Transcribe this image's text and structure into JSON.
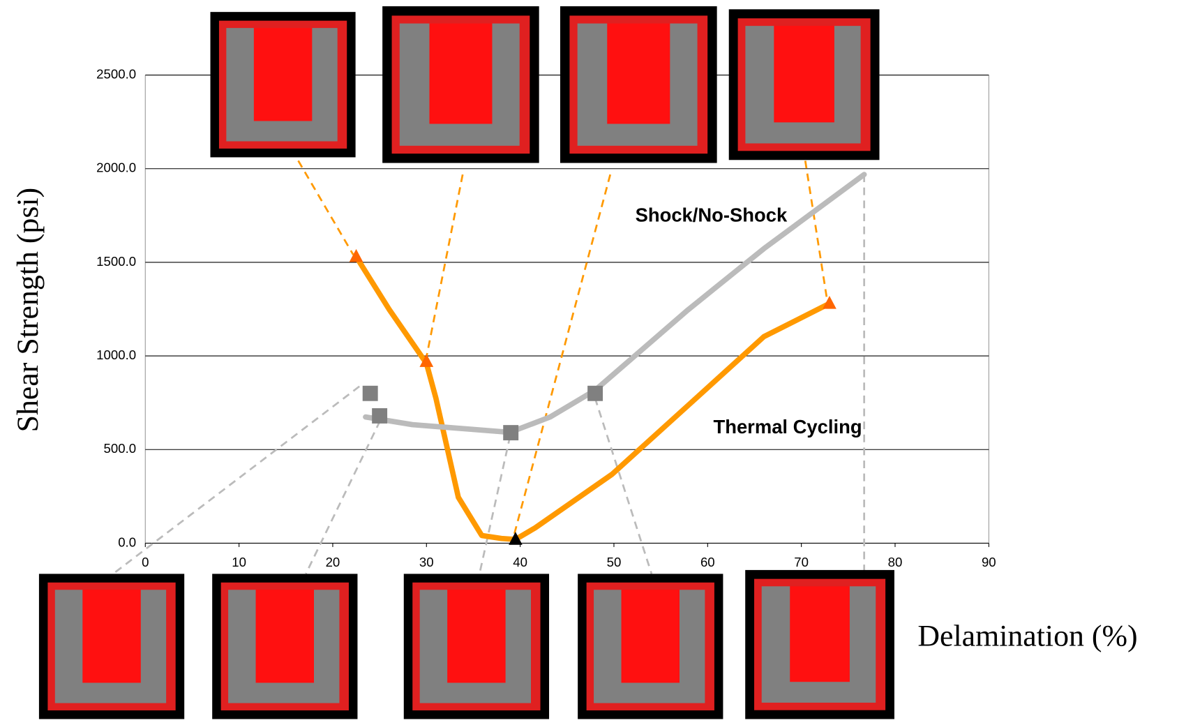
{
  "chart_data": {
    "type": "line",
    "x_label": "Delamination (%)",
    "y_label": "Shear Strength (psi)",
    "xlim": [
      0,
      90
    ],
    "xticks": [
      0,
      10,
      20,
      30,
      40,
      50,
      60,
      70,
      80,
      90
    ],
    "ylim": [
      0,
      2500
    ],
    "yticks": [
      {
        "value": 0,
        "label": "0.0"
      },
      {
        "value": 500,
        "label": "500.0"
      },
      {
        "value": 1000,
        "label": "1000.0"
      },
      {
        "value": 1500,
        "label": "1500.0"
      },
      {
        "value": 2000,
        "label": "2000.0"
      },
      {
        "value": 2500,
        "label": "2500.0"
      }
    ],
    "grid": true,
    "series": [
      {
        "name": "Thermal Cycling",
        "color": "#ff9900",
        "marker": "triangle",
        "x": [
          22.5,
          26,
          30,
          31,
          33.4,
          35.9,
          38,
          39.5,
          41.6,
          49.8,
          57.9,
          66,
          73
        ],
        "values": [
          1530,
          1250,
          960,
          776,
          245,
          41,
          25,
          20,
          82,
          368,
          735,
          1103,
          1280
        ],
        "marker_x": [
          22.5,
          30,
          39.5,
          73
        ],
        "marker_values": [
          1530,
          970,
          20,
          1280
        ],
        "marker_colors": [
          "#ff6600",
          "#ff6600",
          "#000000",
          "#ff6600"
        ]
      },
      {
        "name": "Shock/No-Shock",
        "color": "#bbbbbb",
        "marker": "square",
        "x": [
          23.5,
          28.5,
          38.9,
          43.2,
          48,
          57.9,
          66,
          76.7
        ],
        "values": [
          674,
          633,
          592,
          674,
          817,
          1246,
          1573,
          1969
        ],
        "marker_x": [
          24,
          25,
          39,
          48
        ],
        "marker_values": [
          800,
          680,
          590,
          800
        ],
        "marker_colors": [
          "#808080",
          "#808080",
          "#808080",
          "#808080"
        ]
      }
    ]
  }
}
